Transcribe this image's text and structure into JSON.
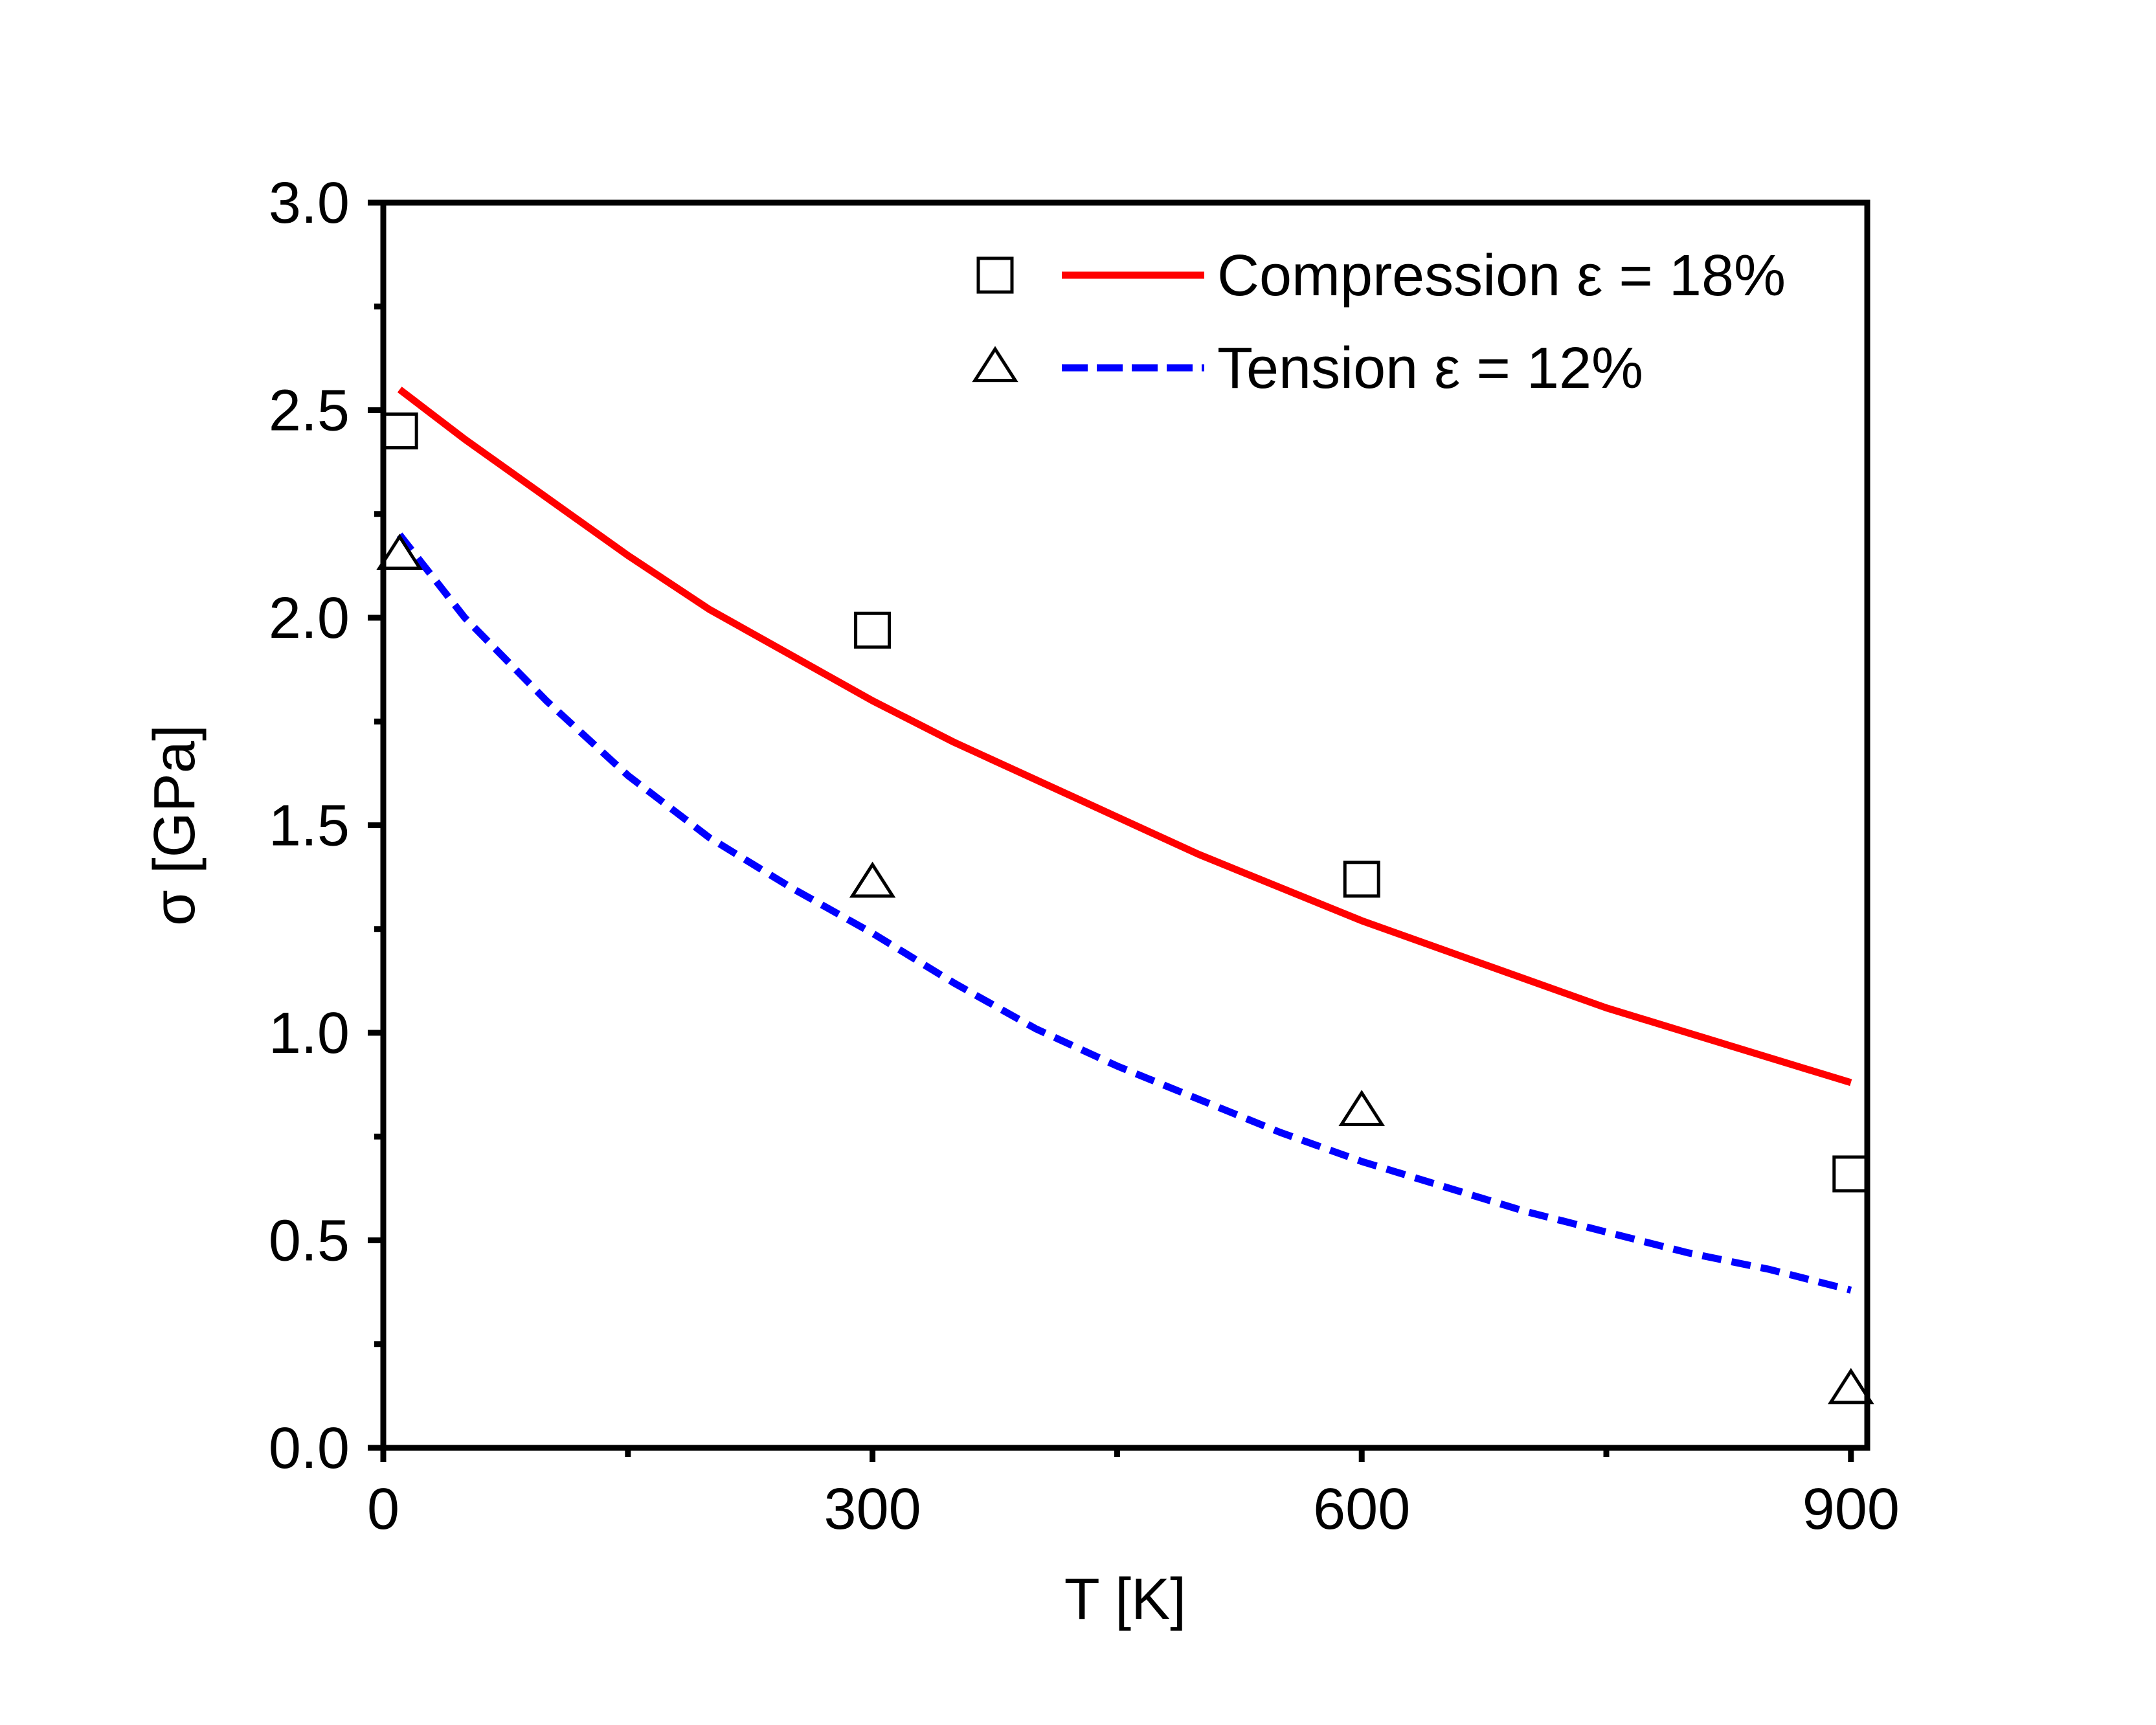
{
  "chart_data": {
    "type": "line",
    "xlabel": "T [K]",
    "ylabel": "σ  [GPa]",
    "xlim": [
      0,
      910
    ],
    "ylim": [
      0.0,
      3.0
    ],
    "x_ticks": [
      0,
      300,
      600,
      900
    ],
    "x_tick_labels": [
      "0",
      "300",
      "600",
      "900"
    ],
    "y_ticks": [
      0.0,
      0.5,
      1.0,
      1.5,
      2.0,
      2.5,
      3.0
    ],
    "y_tick_labels": [
      "0.0",
      "0.5",
      "1.0",
      "1.5",
      "2.0",
      "2.5",
      "3.0"
    ],
    "grid": false,
    "legend_position": "top-right",
    "series": [
      {
        "name": "Compression ε = 18%",
        "color": "#ff0000",
        "line_style": "solid",
        "marker": "square",
        "points": {
          "x": [
            10,
            300,
            600,
            900
          ],
          "y": [
            2.45,
            1.97,
            1.37,
            0.66
          ]
        },
        "curve": {
          "x": [
            10,
            50,
            100,
            150,
            200,
            250,
            300,
            350,
            400,
            450,
            500,
            550,
            600,
            650,
            700,
            750,
            800,
            850,
            900
          ],
          "y": [
            2.55,
            2.43,
            2.29,
            2.15,
            2.02,
            1.91,
            1.8,
            1.7,
            1.61,
            1.52,
            1.43,
            1.35,
            1.27,
            1.2,
            1.13,
            1.06,
            1.0,
            0.94,
            0.88
          ]
        }
      },
      {
        "name": "Tension ε = 12%",
        "color": "#0000ff",
        "line_style": "dashed",
        "marker": "triangle",
        "points": {
          "x": [
            10,
            300,
            600,
            900
          ],
          "y": [
            2.15,
            1.36,
            0.81,
            0.14
          ]
        },
        "curve": {
          "x": [
            10,
            50,
            100,
            150,
            200,
            250,
            300,
            350,
            400,
            450,
            500,
            550,
            600,
            650,
            700,
            750,
            800,
            850,
            900
          ],
          "y": [
            2.2,
            2.0,
            1.8,
            1.62,
            1.47,
            1.35,
            1.24,
            1.12,
            1.01,
            0.92,
            0.84,
            0.76,
            0.69,
            0.63,
            0.57,
            0.52,
            0.47,
            0.43,
            0.38
          ]
        }
      }
    ]
  }
}
